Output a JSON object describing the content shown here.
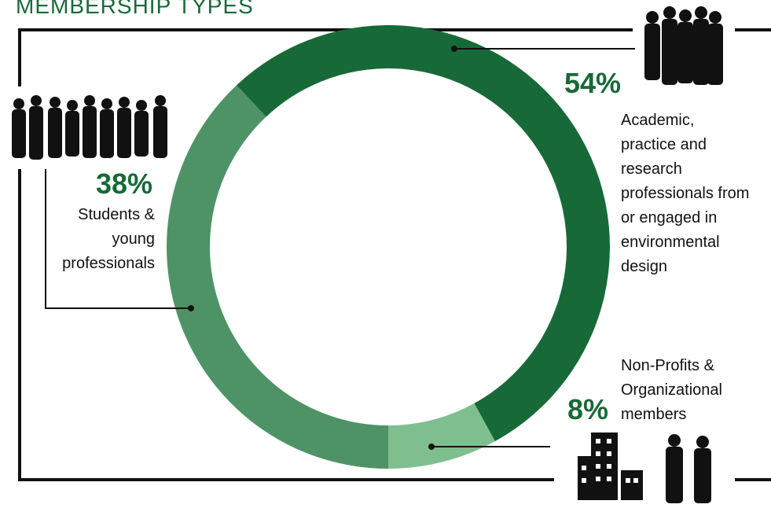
{
  "chart_data": {
    "type": "donut",
    "title": "MEMBERSHIP TYPES",
    "categories": [
      "Academic, practice and research professionals from or engaged in environmental design",
      "Non-Profits & Organizational members",
      "Students & young professionals"
    ],
    "values": [
      54,
      8,
      38
    ],
    "value_labels": [
      "54%",
      "8%",
      "38%"
    ],
    "colors": [
      "#176a37",
      "#7fbf8f",
      "#4e9366"
    ]
  }
}
